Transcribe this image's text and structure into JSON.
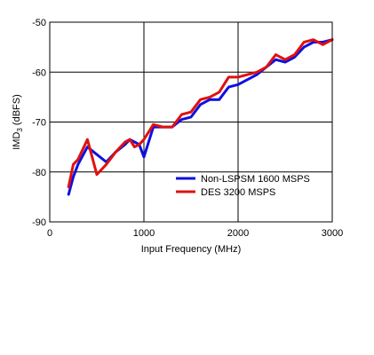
{
  "chart_data": {
    "type": "line",
    "title": "",
    "xlabel": "Input Frequency (MHz)",
    "ylabel": {
      "main": "IMD",
      "sub": "3",
      "suffix": " (dBFS)"
    },
    "xlim": [
      0,
      3000
    ],
    "ylim": [
      -90,
      -50
    ],
    "xticks": [
      0,
      1000,
      2000,
      3000
    ],
    "yticks": [
      -90,
      -80,
      -70,
      -60,
      -50
    ],
    "grid": true,
    "legend": "bottom-right",
    "series": [
      {
        "name": "Non-LSPSM 1600 MSPS",
        "color": "#1010e0",
        "x": [
          200,
          250,
          300,
          400,
          500,
          600,
          700,
          800,
          850,
          900,
          950,
          1000,
          1100,
          1200,
          1300,
          1400,
          1500,
          1600,
          1700,
          1800,
          1900,
          2000,
          2100,
          2200,
          2300,
          2400,
          2500,
          2600,
          2700,
          2800,
          2900,
          3000
        ],
        "y": [
          -84.5,
          -81,
          -78.5,
          -75,
          -76.5,
          -78,
          -76,
          -74.5,
          -73.5,
          -74,
          -74.5,
          -77,
          -71,
          -71,
          -71,
          -69.5,
          -69,
          -66.5,
          -65.5,
          -65.5,
          -63,
          -62.5,
          -61.5,
          -60.5,
          -59,
          -57.5,
          -58,
          -57,
          -55,
          -54,
          -54,
          -53.5
        ]
      },
      {
        "name": "DES 3200 MSPS",
        "color": "#e01010",
        "x": [
          200,
          250,
          300,
          400,
          500,
          600,
          700,
          800,
          850,
          900,
          950,
          1000,
          1100,
          1200,
          1300,
          1400,
          1500,
          1600,
          1700,
          1800,
          1900,
          2000,
          2100,
          2200,
          2300,
          2400,
          2500,
          2600,
          2700,
          2800,
          2900,
          3000
        ],
        "y": [
          -83,
          -78.5,
          -77.5,
          -73.5,
          -80.5,
          -78.5,
          -76,
          -74,
          -73.5,
          -75,
          -74.5,
          -73.5,
          -70.5,
          -71,
          -71,
          -68.5,
          -68,
          -65.5,
          -65,
          -64,
          -61,
          -61,
          -60.5,
          -60,
          -59,
          -56.5,
          -57.5,
          -56.5,
          -54,
          -53.5,
          -54.5,
          -53.5
        ]
      }
    ]
  }
}
